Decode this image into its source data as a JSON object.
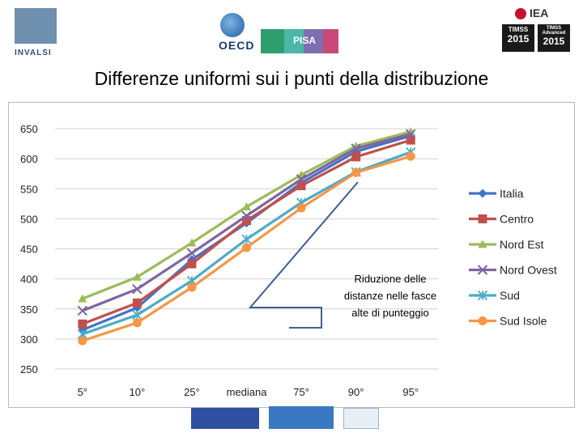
{
  "header": {
    "invalsi_logo": "INVALSI",
    "oecd_logo": "OECD",
    "pisa_logo": "PISA",
    "iea_logo": "IEA",
    "timss_logo_1": {
      "top": "TIMSS",
      "year": "2015"
    },
    "timss_logo_2": {
      "top": "TIMSS Advanced",
      "year": "2015"
    }
  },
  "slide_title": "Differenze uniformi sui i punti della distribuzione",
  "chart_data": {
    "type": "line",
    "title": "",
    "xlabel": "",
    "ylabel": "",
    "categories": [
      "5°",
      "10°",
      "25°",
      "mediana",
      "75°",
      "90°",
      "95°"
    ],
    "ylim": [
      250,
      650
    ],
    "yticks": [
      250,
      300,
      350,
      400,
      450,
      500,
      550,
      600,
      650
    ],
    "grid": true,
    "legend_position": "right",
    "series": [
      {
        "name": "Italia",
        "color": "#4472c4",
        "marker": "diamond",
        "values": [
          315,
          352,
          432,
          493,
          560,
          612,
          638
        ]
      },
      {
        "name": "Centro",
        "color": "#c0504d",
        "marker": "square",
        "values": [
          325,
          360,
          425,
          497,
          555,
          603,
          631
        ]
      },
      {
        "name": "Nord Est",
        "color": "#9bbb59",
        "marker": "triangle",
        "values": [
          367,
          403,
          460,
          520,
          573,
          621,
          645
        ]
      },
      {
        "name": "Nord Ovest",
        "color": "#8064a2",
        "marker": "x",
        "values": [
          347,
          383,
          443,
          505,
          566,
          617,
          641
        ]
      },
      {
        "name": "Sud",
        "color": "#4bacc6",
        "marker": "star",
        "values": [
          308,
          340,
          397,
          466,
          527,
          578,
          611
        ]
      },
      {
        "name": "Sud Isole",
        "color": "#f79646",
        "marker": "circle",
        "values": [
          297,
          327,
          386,
          452,
          518,
          577,
          604
        ]
      }
    ],
    "annotation": "Riduzione delle distanze nelle fasce alte di punteggio"
  }
}
